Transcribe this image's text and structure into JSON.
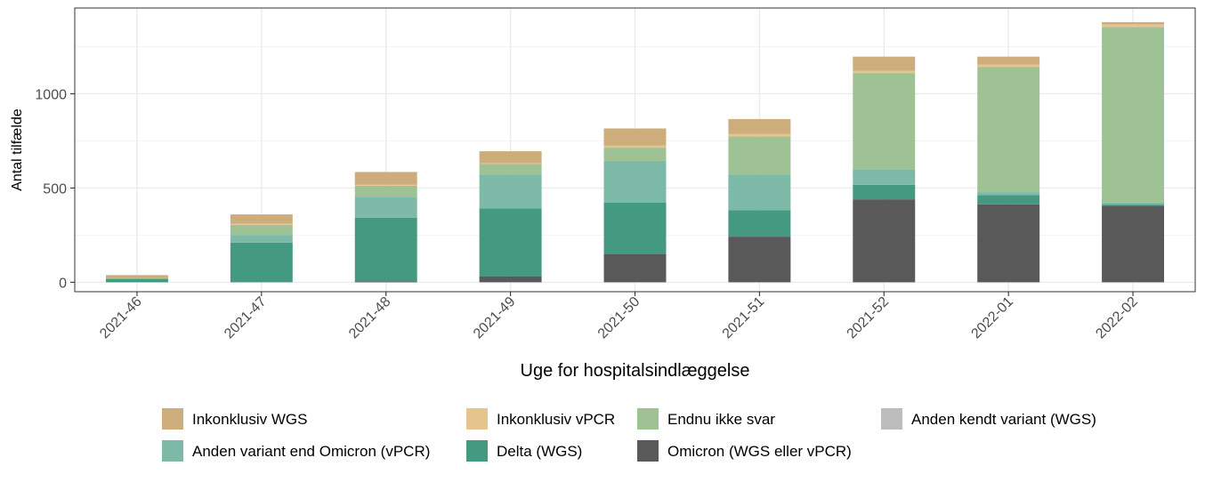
{
  "chart_data": {
    "type": "bar",
    "stacked": true,
    "title": "",
    "xlabel": "Uge for hospitalsindlæggelse",
    "ylabel": "Antal tilfælde",
    "ylim": [
      -50,
      1455
    ],
    "yticks": [
      0,
      500,
      1000
    ],
    "categories": [
      "2021-46",
      "2021-47",
      "2021-48",
      "2021-49",
      "2021-50",
      "2021-51",
      "2021-52",
      "2022-01",
      "2022-02"
    ],
    "series": [
      {
        "name": "Omicron (WGS eller vPCR)",
        "color": "#595959",
        "values": [
          0,
          0,
          5,
          32,
          150,
          242,
          440,
          413,
          405
        ]
      },
      {
        "name": "Delta (WGS)",
        "color": "#439a80",
        "values": [
          18,
          210,
          337,
          360,
          272,
          140,
          77,
          50,
          7
        ]
      },
      {
        "name": "Anden variant end Omicron (vPCR)",
        "color": "#7cb9a7",
        "values": [
          0,
          40,
          108,
          180,
          222,
          190,
          83,
          15,
          10
        ]
      },
      {
        "name": "Anden kendt variant (WGS)",
        "color": "#bdbdbd",
        "values": [
          0,
          0,
          0,
          0,
          0,
          0,
          0,
          0,
          0
        ]
      },
      {
        "name": "Endnu ikke svar",
        "color": "#9fc295",
        "values": [
          5,
          55,
          62,
          55,
          70,
          202,
          510,
          665,
          932
        ]
      },
      {
        "name": "Inkonklusiv vPCR",
        "color": "#e6c48e",
        "values": [
          0,
          5,
          5,
          5,
          12,
          12,
          12,
          12,
          14
        ]
      },
      {
        "name": "Inkonklusiv WGS",
        "color": "#ccad7b",
        "values": [
          15,
          50,
          68,
          63,
          90,
          80,
          75,
          42,
          12
        ]
      }
    ],
    "legend": {
      "position": "bottom",
      "rows": [
        [
          "Inkonklusiv WGS",
          "Inkonklusiv vPCR",
          "Endnu ikke svar",
          "Anden kendt variant (WGS)"
        ],
        [
          "Anden variant end Omicron (vPCR)",
          "Delta (WGS)",
          "Omicron (WGS eller vPCR)"
        ]
      ]
    },
    "grid": true
  }
}
